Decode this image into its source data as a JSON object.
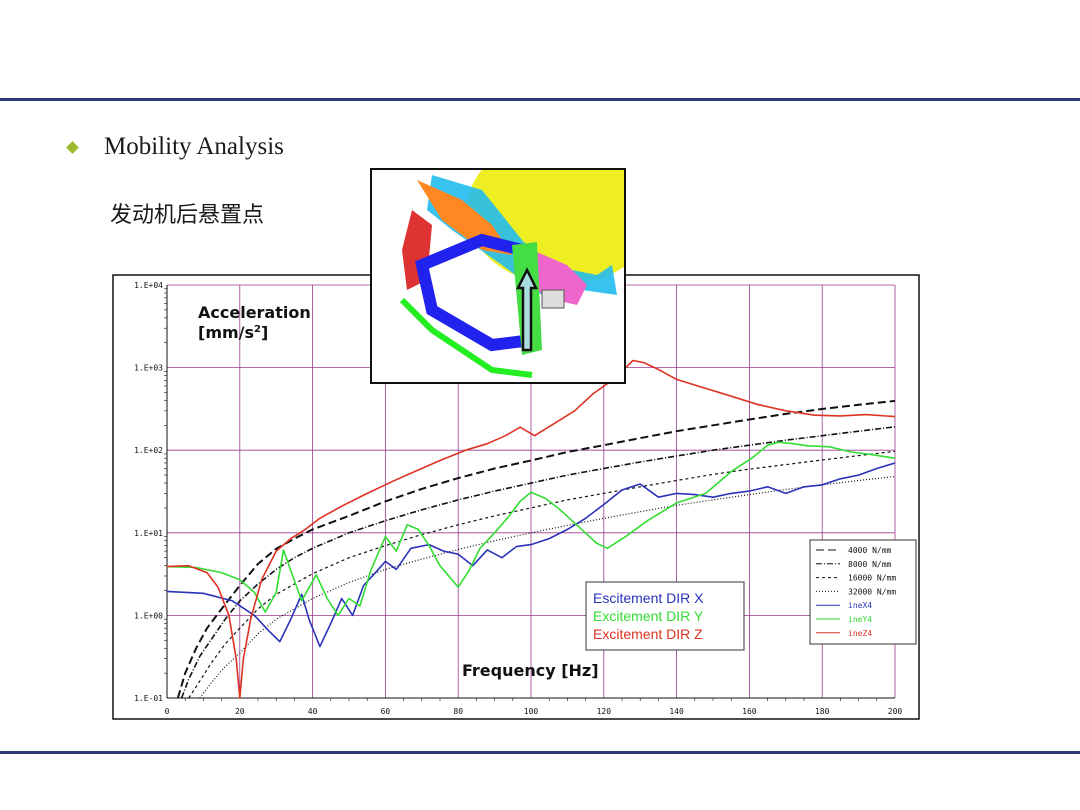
{
  "slide": {
    "heading": "Mobility Analysis",
    "subheading": "发动机后悬置点"
  },
  "colors": {
    "rule": "#2e3a78",
    "bullet": "#9cba2c",
    "grid": "#9a3b8f",
    "series_x": "#2a33b8",
    "series_y": "#33dd33",
    "series_z": "#dd3322"
  },
  "chart_data": {
    "type": "line",
    "ylabel": "Acceleration",
    "ylabel_unit": "[mm/s",
    "ylabel_sup": "2",
    "ylabel_close": "]",
    "xlabel": "Frequency [Hz]",
    "xlim": [
      0,
      200
    ],
    "ylim": [
      0.1,
      10000
    ],
    "yscale": "log",
    "grid": true,
    "x_ticks": [
      "0",
      "20",
      "40",
      "60",
      "80",
      "100",
      "120",
      "140",
      "160",
      "180",
      "200"
    ],
    "y_ticks": [
      {
        "v": 10000,
        "label": "1.E+04"
      },
      {
        "v": 1000,
        "label": "1.E+03"
      },
      {
        "v": 100,
        "label": "1.E+02"
      },
      {
        "v": 10,
        "label": "1.E+01"
      },
      {
        "v": 1,
        "label": "1.E+00"
      },
      {
        "v": 0.1,
        "label": "1.E-01"
      }
    ],
    "legend_small": [
      {
        "label": "4000 N/mm",
        "color": "#111111",
        "dash": "8,4"
      },
      {
        "label": "8000 N/mm",
        "color": "#111111",
        "dash": "6,2,1,2"
      },
      {
        "label": "16000 N/mm",
        "color": "#111111",
        "dash": "3,3"
      },
      {
        "label": "32000 N/mm",
        "color": "#111111",
        "dash": "1,2"
      },
      {
        "label": "ineX4",
        "color": "#2a33b8",
        "dash": ""
      },
      {
        "label": "ineY4",
        "color": "#33dd33",
        "dash": ""
      },
      {
        "label": "ineZ4",
        "color": "#dd3322",
        "dash": ""
      }
    ],
    "legend_big": [
      {
        "label": "Escitement DIR X",
        "color": "#2a33b8"
      },
      {
        "label": "Excitement DIR Y",
        "color": "#33dd33"
      },
      {
        "label": "Excitement DIR Z",
        "color": "#dd3322"
      }
    ],
    "series": [
      {
        "name": "4000 N/mm",
        "color": "#111111",
        "dash": "8,4",
        "width": 2,
        "points": [
          [
            3,
            0.1
          ],
          [
            5,
            0.2
          ],
          [
            8,
            0.4
          ],
          [
            11,
            0.7
          ],
          [
            15,
            1.2
          ],
          [
            20,
            2.3
          ],
          [
            25,
            4.2
          ],
          [
            30,
            6.4
          ],
          [
            35,
            8.5
          ],
          [
            40,
            11
          ],
          [
            50,
            16
          ],
          [
            60,
            24
          ],
          [
            70,
            34
          ],
          [
            80,
            46
          ],
          [
            90,
            60
          ],
          [
            100,
            75
          ],
          [
            110,
            95
          ],
          [
            120,
            115
          ],
          [
            130,
            140
          ],
          [
            140,
            170
          ],
          [
            150,
            200
          ],
          [
            160,
            235
          ],
          [
            170,
            275
          ],
          [
            180,
            315
          ],
          [
            190,
            355
          ],
          [
            200,
            395
          ]
        ]
      },
      {
        "name": "8000 N/mm",
        "color": "#111111",
        "dash": "6,2,1,2",
        "width": 1.6,
        "points": [
          [
            4,
            0.1
          ],
          [
            6,
            0.17
          ],
          [
            9,
            0.32
          ],
          [
            12,
            0.5
          ],
          [
            16,
            0.9
          ],
          [
            20,
            1.5
          ],
          [
            25,
            2.4
          ],
          [
            30,
            3.6
          ],
          [
            35,
            5.0
          ],
          [
            40,
            6.5
          ],
          [
            50,
            10
          ],
          [
            60,
            14
          ],
          [
            70,
            19
          ],
          [
            80,
            25
          ],
          [
            90,
            32
          ],
          [
            100,
            40
          ],
          [
            110,
            50
          ],
          [
            120,
            60
          ],
          [
            130,
            72
          ],
          [
            140,
            85
          ],
          [
            150,
            100
          ],
          [
            160,
            115
          ],
          [
            170,
            132
          ],
          [
            180,
            150
          ],
          [
            190,
            170
          ],
          [
            200,
            192
          ]
        ]
      },
      {
        "name": "16000 N/mm",
        "color": "#111111",
        "dash": "3,3",
        "width": 1.2,
        "points": [
          [
            6,
            0.1
          ],
          [
            9,
            0.16
          ],
          [
            12,
            0.26
          ],
          [
            16,
            0.45
          ],
          [
            20,
            0.7
          ],
          [
            25,
            1.2
          ],
          [
            30,
            1.8
          ],
          [
            40,
            3.2
          ],
          [
            50,
            5
          ],
          [
            60,
            7
          ],
          [
            70,
            9.5
          ],
          [
            80,
            12.5
          ],
          [
            90,
            16
          ],
          [
            100,
            20
          ],
          [
            110,
            25
          ],
          [
            120,
            30
          ],
          [
            130,
            36
          ],
          [
            140,
            43
          ],
          [
            150,
            51
          ],
          [
            160,
            59
          ],
          [
            170,
            67
          ],
          [
            180,
            76
          ],
          [
            190,
            86
          ],
          [
            200,
            97
          ]
        ]
      },
      {
        "name": "32000 N/mm",
        "color": "#111111",
        "dash": "1,2",
        "width": 1.2,
        "points": [
          [
            9,
            0.1
          ],
          [
            12,
            0.15
          ],
          [
            16,
            0.24
          ],
          [
            20,
            0.35
          ],
          [
            25,
            0.6
          ],
          [
            30,
            0.9
          ],
          [
            40,
            1.6
          ],
          [
            50,
            2.5
          ],
          [
            60,
            3.6
          ],
          [
            70,
            4.8
          ],
          [
            80,
            6.3
          ],
          [
            90,
            8
          ],
          [
            100,
            10
          ],
          [
            110,
            12.3
          ],
          [
            120,
            15
          ],
          [
            130,
            18
          ],
          [
            140,
            21.5
          ],
          [
            150,
            25
          ],
          [
            160,
            29
          ],
          [
            170,
            33.5
          ],
          [
            180,
            38
          ],
          [
            190,
            43
          ],
          [
            200,
            48
          ]
        ]
      },
      {
        "name": "ineX4",
        "color": "#2a33b8",
        "dash": "",
        "width": 1.6,
        "points": [
          [
            0,
            1.95
          ],
          [
            10,
            1.85
          ],
          [
            18,
            1.5
          ],
          [
            24,
            1.0
          ],
          [
            28,
            0.65
          ],
          [
            31,
            0.48
          ],
          [
            34,
            0.9
          ],
          [
            37,
            1.8
          ],
          [
            39,
            0.9
          ],
          [
            42,
            0.42
          ],
          [
            45,
            0.8
          ],
          [
            48,
            1.6
          ],
          [
            51,
            1.0
          ],
          [
            54,
            2.3
          ],
          [
            57,
            3.2
          ],
          [
            60,
            4.5
          ],
          [
            63,
            3.6
          ],
          [
            67,
            6.5
          ],
          [
            72,
            7.2
          ],
          [
            76,
            6
          ],
          [
            80,
            5.5
          ],
          [
            84,
            4.0
          ],
          [
            88,
            6.2
          ],
          [
            92,
            5.0
          ],
          [
            96,
            6.8
          ],
          [
            100,
            7.2
          ],
          [
            105,
            8.5
          ],
          [
            110,
            11
          ],
          [
            115,
            15
          ],
          [
            120,
            22
          ],
          [
            125,
            33
          ],
          [
            130,
            39
          ],
          [
            135,
            27
          ],
          [
            140,
            30
          ],
          [
            145,
            29
          ],
          [
            150,
            27
          ],
          [
            155,
            30
          ],
          [
            160,
            32
          ],
          [
            165,
            36
          ],
          [
            170,
            30
          ],
          [
            175,
            36
          ],
          [
            180,
            38
          ],
          [
            185,
            45
          ],
          [
            190,
            50
          ],
          [
            195,
            60
          ],
          [
            200,
            70
          ]
        ]
      },
      {
        "name": "ineY4",
        "color": "#33dd33",
        "dash": "",
        "width": 1.6,
        "points": [
          [
            0,
            3.9
          ],
          [
            8,
            3.8
          ],
          [
            15,
            3.3
          ],
          [
            20,
            2.7
          ],
          [
            24,
            1.9
          ],
          [
            27,
            1.1
          ],
          [
            30,
            1.9
          ],
          [
            32,
            6.2
          ],
          [
            34,
            3.5
          ],
          [
            37,
            1.5
          ],
          [
            41,
            3.1
          ],
          [
            44,
            1.6
          ],
          [
            47,
            1.0
          ],
          [
            50,
            1.6
          ],
          [
            53,
            1.3
          ],
          [
            56,
            3.5
          ],
          [
            60,
            9
          ],
          [
            63,
            6
          ],
          [
            66,
            12.5
          ],
          [
            69,
            11
          ],
          [
            72,
            7
          ],
          [
            75,
            4
          ],
          [
            80,
            2.2
          ],
          [
            83,
            3.5
          ],
          [
            86,
            6.5
          ],
          [
            90,
            10
          ],
          [
            94,
            16
          ],
          [
            97,
            24
          ],
          [
            100,
            31
          ],
          [
            104,
            26
          ],
          [
            108,
            19
          ],
          [
            113,
            12
          ],
          [
            118,
            7.5
          ],
          [
            121,
            6.5
          ],
          [
            126,
            9
          ],
          [
            132,
            14
          ],
          [
            140,
            23
          ],
          [
            148,
            30
          ],
          [
            155,
            55
          ],
          [
            161,
            82
          ],
          [
            165,
            115
          ],
          [
            168,
            125
          ],
          [
            172,
            120
          ],
          [
            176,
            113
          ],
          [
            182,
            110
          ],
          [
            188,
            95
          ],
          [
            194,
            88
          ],
          [
            200,
            80
          ]
        ]
      },
      {
        "name": "ineZ4",
        "color": "#dd3322",
        "dash": "",
        "width": 1.6,
        "points": [
          [
            0,
            3.9
          ],
          [
            6,
            4.0
          ],
          [
            11,
            3.3
          ],
          [
            14,
            2.2
          ],
          [
            17,
            1.0
          ],
          [
            19,
            0.3
          ],
          [
            20,
            0.1
          ],
          [
            21,
            0.3
          ],
          [
            23,
            0.9
          ],
          [
            26,
            2.7
          ],
          [
            30,
            6
          ],
          [
            34,
            8.5
          ],
          [
            38,
            11
          ],
          [
            42,
            15
          ],
          [
            48,
            21
          ],
          [
            55,
            30
          ],
          [
            62,
            42
          ],
          [
            68,
            55
          ],
          [
            75,
            75
          ],
          [
            82,
            100
          ],
          [
            88,
            120
          ],
          [
            93,
            150
          ],
          [
            97,
            190
          ],
          [
            101,
            150
          ],
          [
            106,
            205
          ],
          [
            112,
            300
          ],
          [
            117,
            480
          ],
          [
            121,
            640
          ],
          [
            125,
            900
          ],
          [
            128,
            1220
          ],
          [
            131,
            1150
          ],
          [
            135,
            950
          ],
          [
            140,
            720
          ],
          [
            148,
            560
          ],
          [
            155,
            450
          ],
          [
            162,
            360
          ],
          [
            170,
            300
          ],
          [
            178,
            265
          ],
          [
            185,
            260
          ],
          [
            192,
            270
          ],
          [
            200,
            255
          ]
        ]
      }
    ]
  }
}
